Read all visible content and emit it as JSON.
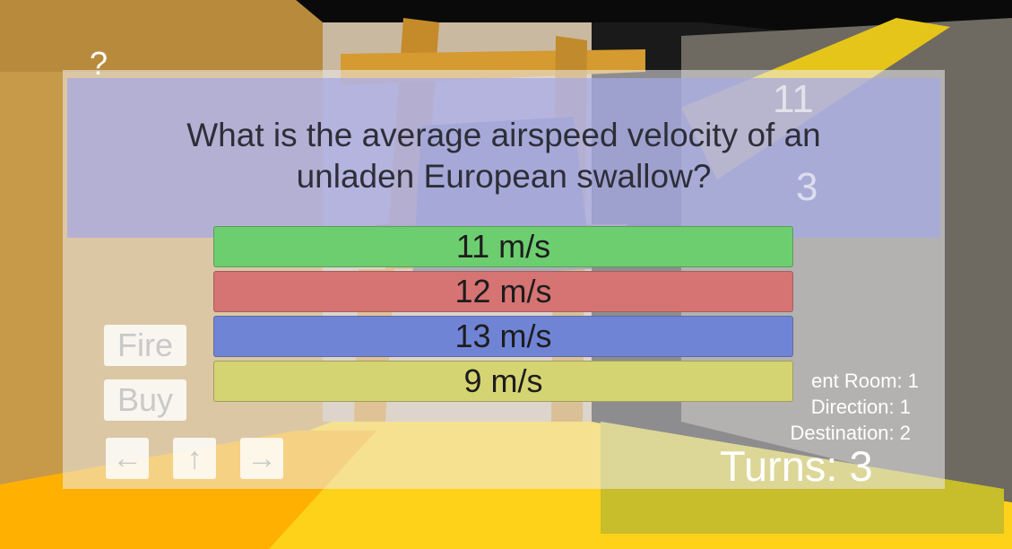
{
  "help_label": "?",
  "question": {
    "text": "What is the average airspeed velocity of an\nunladen European swallow?"
  },
  "answers": [
    {
      "label": "11 m/s",
      "color": "#6dce6f"
    },
    {
      "label": "12 m/s",
      "color": "#d67373"
    },
    {
      "label": "13 m/s",
      "color": "#7084d6"
    },
    {
      "label": "9 m/s",
      "color": "#d5d472"
    }
  ],
  "controls": {
    "fire_label": "Fire",
    "buy_label": "Buy",
    "left_arrow": "←",
    "up_arrow": "↑",
    "right_arrow": "→"
  },
  "status": {
    "current_room": "ent Room: 1",
    "direction": "Direction: 1",
    "destination": "Destination: 2",
    "turns": "Turns: 3"
  },
  "scene_labels": {
    "wall_number_top": "11",
    "wall_number_mid": "3"
  }
}
